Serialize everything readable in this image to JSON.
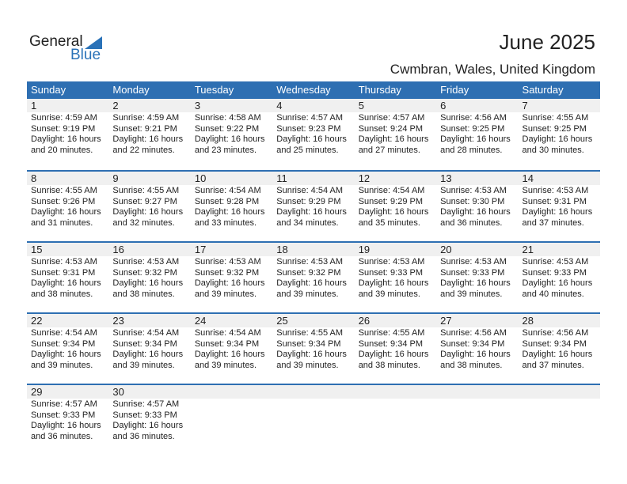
{
  "logo": {
    "line1": "General",
    "line2": "Blue"
  },
  "title": "June 2025",
  "location": "Cwmbran, Wales, United Kingdom",
  "colors": {
    "header": "#2e6fb2",
    "date_strip": "#f0f0f0"
  },
  "weekdays": [
    "Sunday",
    "Monday",
    "Tuesday",
    "Wednesday",
    "Thursday",
    "Friday",
    "Saturday"
  ],
  "weeks": [
    [
      {
        "day": "1",
        "sunrise": "Sunrise: 4:59 AM",
        "sunset": "Sunset: 9:19 PM",
        "daylight": "Daylight: 16 hours",
        "minutes": "and 20 minutes."
      },
      {
        "day": "2",
        "sunrise": "Sunrise: 4:59 AM",
        "sunset": "Sunset: 9:21 PM",
        "daylight": "Daylight: 16 hours",
        "minutes": "and 22 minutes."
      },
      {
        "day": "3",
        "sunrise": "Sunrise: 4:58 AM",
        "sunset": "Sunset: 9:22 PM",
        "daylight": "Daylight: 16 hours",
        "minutes": "and 23 minutes."
      },
      {
        "day": "4",
        "sunrise": "Sunrise: 4:57 AM",
        "sunset": "Sunset: 9:23 PM",
        "daylight": "Daylight: 16 hours",
        "minutes": "and 25 minutes."
      },
      {
        "day": "5",
        "sunrise": "Sunrise: 4:57 AM",
        "sunset": "Sunset: 9:24 PM",
        "daylight": "Daylight: 16 hours",
        "minutes": "and 27 minutes."
      },
      {
        "day": "6",
        "sunrise": "Sunrise: 4:56 AM",
        "sunset": "Sunset: 9:25 PM",
        "daylight": "Daylight: 16 hours",
        "minutes": "and 28 minutes."
      },
      {
        "day": "7",
        "sunrise": "Sunrise: 4:55 AM",
        "sunset": "Sunset: 9:25 PM",
        "daylight": "Daylight: 16 hours",
        "minutes": "and 30 minutes."
      }
    ],
    [
      {
        "day": "8",
        "sunrise": "Sunrise: 4:55 AM",
        "sunset": "Sunset: 9:26 PM",
        "daylight": "Daylight: 16 hours",
        "minutes": "and 31 minutes."
      },
      {
        "day": "9",
        "sunrise": "Sunrise: 4:55 AM",
        "sunset": "Sunset: 9:27 PM",
        "daylight": "Daylight: 16 hours",
        "minutes": "and 32 minutes."
      },
      {
        "day": "10",
        "sunrise": "Sunrise: 4:54 AM",
        "sunset": "Sunset: 9:28 PM",
        "daylight": "Daylight: 16 hours",
        "minutes": "and 33 minutes."
      },
      {
        "day": "11",
        "sunrise": "Sunrise: 4:54 AM",
        "sunset": "Sunset: 9:29 PM",
        "daylight": "Daylight: 16 hours",
        "minutes": "and 34 minutes."
      },
      {
        "day": "12",
        "sunrise": "Sunrise: 4:54 AM",
        "sunset": "Sunset: 9:29 PM",
        "daylight": "Daylight: 16 hours",
        "minutes": "and 35 minutes."
      },
      {
        "day": "13",
        "sunrise": "Sunrise: 4:53 AM",
        "sunset": "Sunset: 9:30 PM",
        "daylight": "Daylight: 16 hours",
        "minutes": "and 36 minutes."
      },
      {
        "day": "14",
        "sunrise": "Sunrise: 4:53 AM",
        "sunset": "Sunset: 9:31 PM",
        "daylight": "Daylight: 16 hours",
        "minutes": "and 37 minutes."
      }
    ],
    [
      {
        "day": "15",
        "sunrise": "Sunrise: 4:53 AM",
        "sunset": "Sunset: 9:31 PM",
        "daylight": "Daylight: 16 hours",
        "minutes": "and 38 minutes."
      },
      {
        "day": "16",
        "sunrise": "Sunrise: 4:53 AM",
        "sunset": "Sunset: 9:32 PM",
        "daylight": "Daylight: 16 hours",
        "minutes": "and 38 minutes."
      },
      {
        "day": "17",
        "sunrise": "Sunrise: 4:53 AM",
        "sunset": "Sunset: 9:32 PM",
        "daylight": "Daylight: 16 hours",
        "minutes": "and 39 minutes."
      },
      {
        "day": "18",
        "sunrise": "Sunrise: 4:53 AM",
        "sunset": "Sunset: 9:32 PM",
        "daylight": "Daylight: 16 hours",
        "minutes": "and 39 minutes."
      },
      {
        "day": "19",
        "sunrise": "Sunrise: 4:53 AM",
        "sunset": "Sunset: 9:33 PM",
        "daylight": "Daylight: 16 hours",
        "minutes": "and 39 minutes."
      },
      {
        "day": "20",
        "sunrise": "Sunrise: 4:53 AM",
        "sunset": "Sunset: 9:33 PM",
        "daylight": "Daylight: 16 hours",
        "minutes": "and 39 minutes."
      },
      {
        "day": "21",
        "sunrise": "Sunrise: 4:53 AM",
        "sunset": "Sunset: 9:33 PM",
        "daylight": "Daylight: 16 hours",
        "minutes": "and 40 minutes."
      }
    ],
    [
      {
        "day": "22",
        "sunrise": "Sunrise: 4:54 AM",
        "sunset": "Sunset: 9:34 PM",
        "daylight": "Daylight: 16 hours",
        "minutes": "and 39 minutes."
      },
      {
        "day": "23",
        "sunrise": "Sunrise: 4:54 AM",
        "sunset": "Sunset: 9:34 PM",
        "daylight": "Daylight: 16 hours",
        "minutes": "and 39 minutes."
      },
      {
        "day": "24",
        "sunrise": "Sunrise: 4:54 AM",
        "sunset": "Sunset: 9:34 PM",
        "daylight": "Daylight: 16 hours",
        "minutes": "and 39 minutes."
      },
      {
        "day": "25",
        "sunrise": "Sunrise: 4:55 AM",
        "sunset": "Sunset: 9:34 PM",
        "daylight": "Daylight: 16 hours",
        "minutes": "and 39 minutes."
      },
      {
        "day": "26",
        "sunrise": "Sunrise: 4:55 AM",
        "sunset": "Sunset: 9:34 PM",
        "daylight": "Daylight: 16 hours",
        "minutes": "and 38 minutes."
      },
      {
        "day": "27",
        "sunrise": "Sunrise: 4:56 AM",
        "sunset": "Sunset: 9:34 PM",
        "daylight": "Daylight: 16 hours",
        "minutes": "and 38 minutes."
      },
      {
        "day": "28",
        "sunrise": "Sunrise: 4:56 AM",
        "sunset": "Sunset: 9:34 PM",
        "daylight": "Daylight: 16 hours",
        "minutes": "and 37 minutes."
      }
    ],
    [
      {
        "day": "29",
        "sunrise": "Sunrise: 4:57 AM",
        "sunset": "Sunset: 9:33 PM",
        "daylight": "Daylight: 16 hours",
        "minutes": "and 36 minutes."
      },
      {
        "day": "30",
        "sunrise": "Sunrise: 4:57 AM",
        "sunset": "Sunset: 9:33 PM",
        "daylight": "Daylight: 16 hours",
        "minutes": "and 36 minutes."
      },
      {},
      {},
      {},
      {},
      {}
    ]
  ]
}
